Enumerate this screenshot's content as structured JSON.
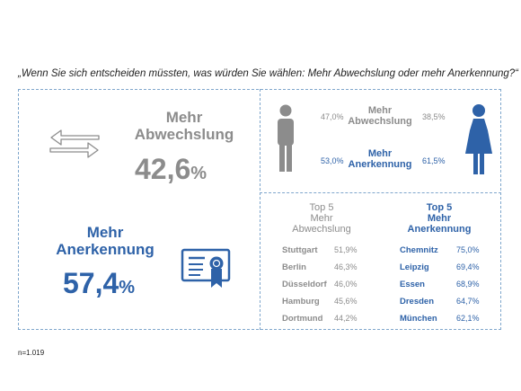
{
  "question": "„Wenn Sie sich entscheiden müssten, was würden Sie wählen: Mehr Abwechslung oder mehr Anerkennung?“",
  "overall": {
    "abwechslung": {
      "label_line1": "Mehr",
      "label_line2": "Abwechslung",
      "value": "42,6",
      "pct": "%"
    },
    "anerkennung": {
      "label_line1": "Mehr",
      "label_line2": "Anerkennung",
      "value": "57,4",
      "pct": "%"
    }
  },
  "gender": {
    "row1": {
      "male": "47,0%",
      "label_line1": "Mehr",
      "label_line2": "Abwechslung",
      "female": "38,5%"
    },
    "row2": {
      "male": "53,0%",
      "label_line1": "Mehr",
      "label_line2": "Anerkennung",
      "female": "61,5%"
    }
  },
  "top_abwechslung": {
    "header": [
      "Top 5",
      "Mehr",
      "Abwechslung"
    ],
    "rows": [
      {
        "city": "Stuttgart",
        "value": "51,9%"
      },
      {
        "city": "Berlin",
        "value": "46,3%"
      },
      {
        "city": "Düsseldorf",
        "value": "46,0%"
      },
      {
        "city": "Hamburg",
        "value": "45,6%"
      },
      {
        "city": "Dortmund",
        "value": "44,2%"
      }
    ]
  },
  "top_anerkennung": {
    "header": [
      "Top 5",
      "Mehr",
      "Anerkennung"
    ],
    "rows": [
      {
        "city": "Chemnitz",
        "value": "75,0%"
      },
      {
        "city": "Leipzig",
        "value": "69,4%"
      },
      {
        "city": "Essen",
        "value": "68,9%"
      },
      {
        "city": "Dresden",
        "value": "64,7%"
      },
      {
        "city": "München",
        "value": "62,1%"
      }
    ]
  },
  "colors": {
    "gray": "#8c8c8c",
    "blue": "#2e62a8",
    "border": "#7fa6cc"
  },
  "icons": [
    "exchange-arrows-icon",
    "certificate-icon",
    "male-figure-icon",
    "female-figure-icon"
  ],
  "chart_data": [
    {
      "type": "table",
      "categories": [
        "Mehr Abwechslung",
        "Mehr Anerkennung"
      ],
      "values": [
        42.6,
        57.4
      ]
    },
    {
      "type": "table",
      "categories": [
        "Mehr Abwechslung",
        "Mehr Anerkennung"
      ],
      "series": [
        {
          "name": "",
          "values": [
            47.0,
            53.0
          ]
        },
        {
          "name": "",
          "values": [
            38.5,
            61.5
          ]
        }
      ]
    },
    {
      "type": "table",
      "categories": [
        "Stuttgart",
        "Berlin",
        "Düsseldorf",
        "Hamburg",
        "Dortmund"
      ],
      "values": [
        51.9,
        46.3,
        46.0,
        45.6,
        44.2
      ]
    },
    {
      "type": "table",
      "categories": [
        "Chemnitz",
        "Leipzig",
        "Essen",
        "Dresden",
        "München"
      ],
      "values": [
        75.0,
        69.4,
        68.9,
        64.7,
        62.1
      ]
    }
  ],
  "note": "n=1.019"
}
